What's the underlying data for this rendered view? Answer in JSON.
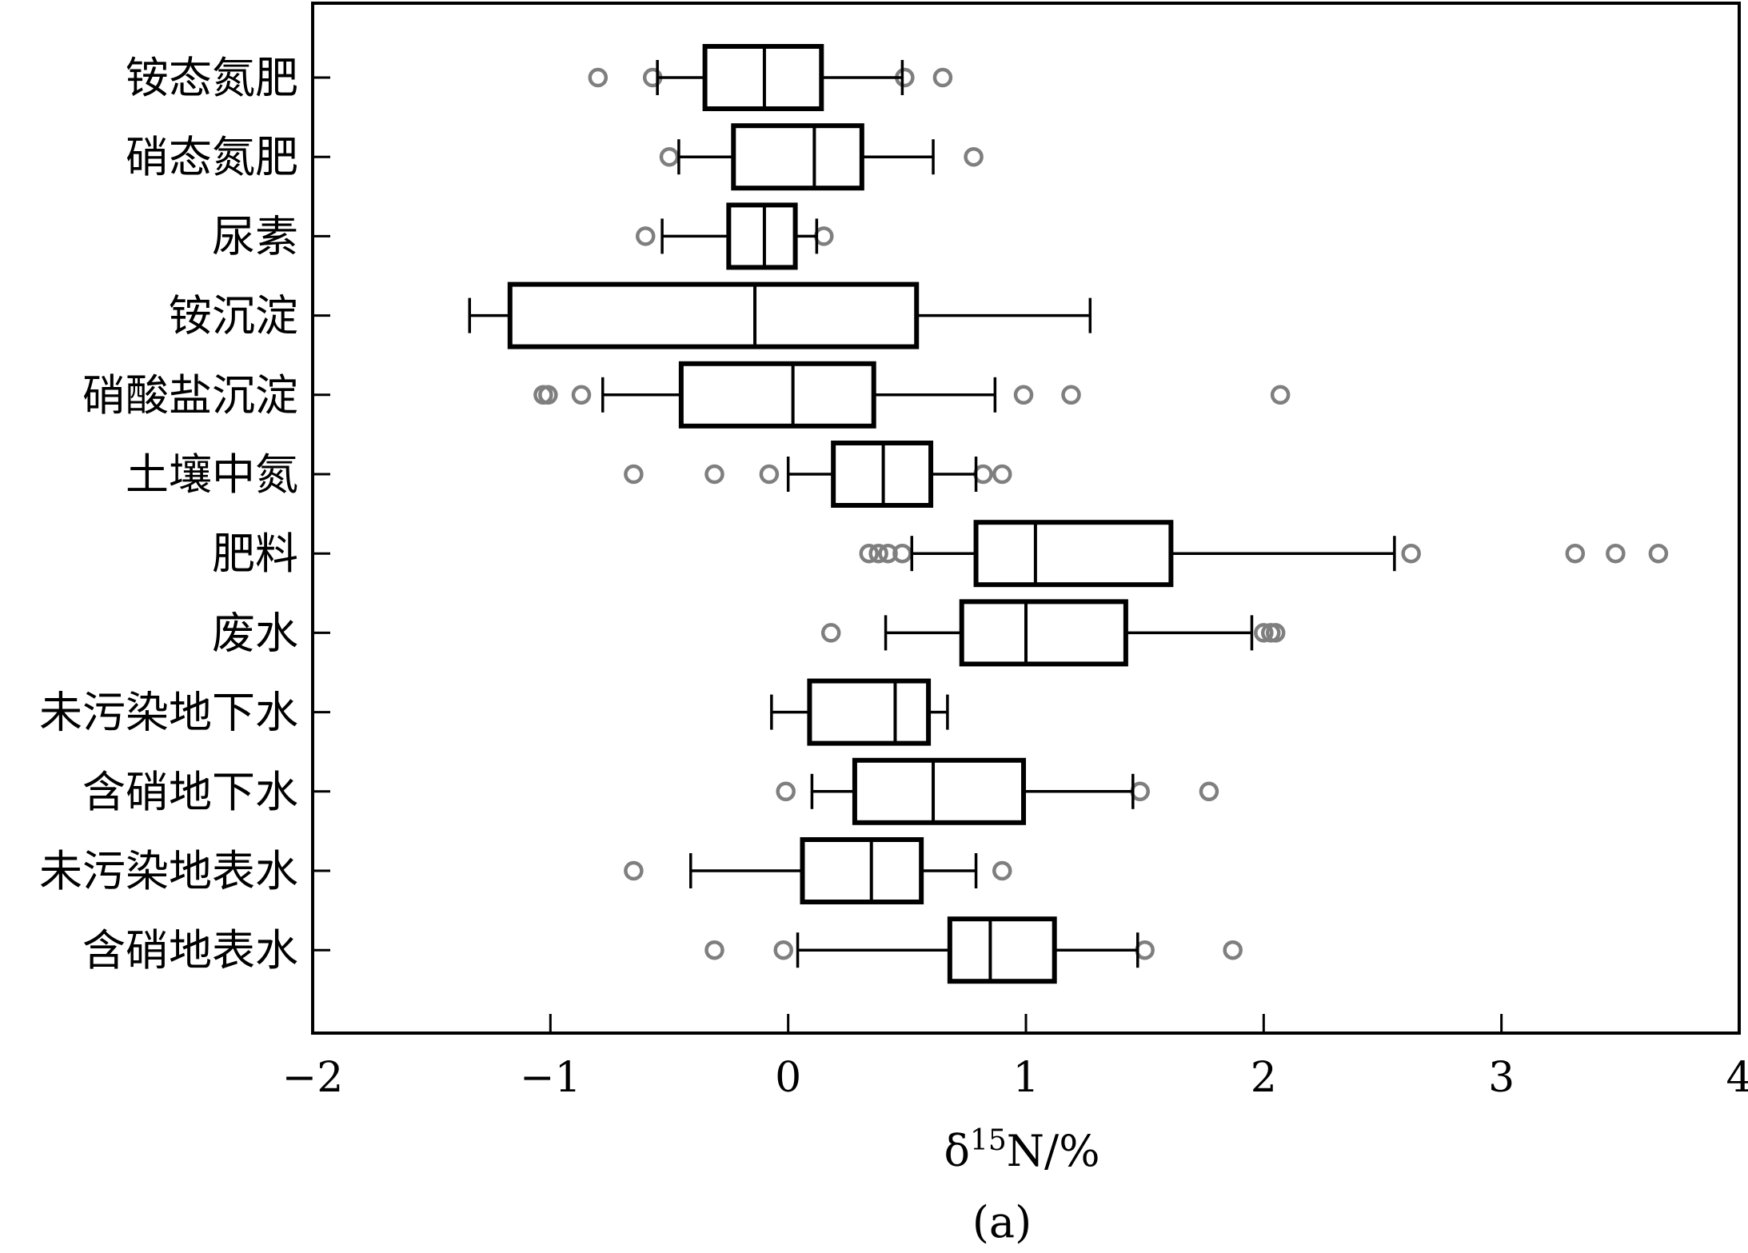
{
  "chart_data": {
    "type": "boxplot",
    "orientation": "horizontal",
    "title": "",
    "xlabel": "δ15N/%",
    "xlabel_parts": {
      "prefix": "δ",
      "superscript": "15",
      "suffix": "N/%"
    },
    "caption": "(a)",
    "xlim": [
      -2,
      4
    ],
    "xticks": [
      -2,
      -1,
      0,
      1,
      2,
      3,
      4
    ],
    "xtick_labels": [
      "−2",
      "−1",
      "0",
      "1",
      "2",
      "3",
      "4"
    ],
    "grid": false,
    "colors": {
      "box": "#000000",
      "outlier": "#7f7f7f"
    },
    "categories": [
      "铵态氮肥",
      "硝态氮肥",
      "尿素",
      "铵沉淀",
      "硝酸盐沉淀",
      "土壤中氮",
      "肥料",
      "废水",
      "未污染地下水",
      "含硝地下水",
      "未污染地表水",
      "含硝地表水"
    ],
    "series": [
      {
        "name": "铵态氮肥",
        "whisker_low": -0.55,
        "q1": -0.35,
        "median": -0.1,
        "q3": 0.14,
        "whisker_high": 0.48,
        "outliers": [
          -0.8,
          -0.57,
          0.49,
          0.65
        ]
      },
      {
        "name": "硝态氮肥",
        "whisker_low": -0.46,
        "q1": -0.23,
        "median": 0.11,
        "q3": 0.31,
        "whisker_high": 0.61,
        "outliers": [
          -0.5,
          0.78
        ]
      },
      {
        "name": "尿素",
        "whisker_low": -0.53,
        "q1": -0.25,
        "median": -0.1,
        "q3": 0.03,
        "whisker_high": 0.12,
        "outliers": [
          -0.6,
          0.15
        ]
      },
      {
        "name": "铵沉淀",
        "whisker_low": -1.34,
        "q1": -1.17,
        "median": -0.14,
        "q3": 0.54,
        "whisker_high": 1.27,
        "outliers": []
      },
      {
        "name": "硝酸盐沉淀",
        "whisker_low": -0.78,
        "q1": -0.45,
        "median": 0.02,
        "q3": 0.36,
        "whisker_high": 0.87,
        "outliers": [
          -1.03,
          -1.01,
          -0.87,
          0.99,
          1.19,
          2.07
        ]
      },
      {
        "name": "土壤中氮",
        "whisker_low": 0.0,
        "q1": 0.19,
        "median": 0.4,
        "q3": 0.6,
        "whisker_high": 0.79,
        "outliers": [
          -0.65,
          -0.31,
          -0.08,
          0.82,
          0.9
        ]
      },
      {
        "name": "肥料",
        "whisker_low": 0.52,
        "q1": 0.79,
        "median": 1.04,
        "q3": 1.61,
        "whisker_high": 2.55,
        "outliers": [
          0.34,
          0.38,
          0.42,
          0.48,
          2.62,
          3.31,
          3.48,
          3.66
        ]
      },
      {
        "name": "废水",
        "whisker_low": 0.41,
        "q1": 0.73,
        "median": 1.0,
        "q3": 1.42,
        "whisker_high": 1.95,
        "outliers": [
          0.18,
          2.0,
          2.03,
          2.05
        ]
      },
      {
        "name": "未污染地下水",
        "whisker_low": -0.07,
        "q1": 0.09,
        "median": 0.45,
        "q3": 0.59,
        "whisker_high": 0.67,
        "outliers": []
      },
      {
        "name": "含硝地下水",
        "whisker_low": 0.1,
        "q1": 0.28,
        "median": 0.61,
        "q3": 0.99,
        "whisker_high": 1.45,
        "outliers": [
          -0.01,
          1.48,
          1.77
        ]
      },
      {
        "name": "未污染地表水",
        "whisker_low": -0.41,
        "q1": 0.06,
        "median": 0.35,
        "q3": 0.56,
        "whisker_high": 0.79,
        "outliers": [
          -0.65,
          0.9
        ]
      },
      {
        "name": "含硝地表水",
        "whisker_low": 0.04,
        "q1": 0.68,
        "median": 0.85,
        "q3": 1.12,
        "whisker_high": 1.47,
        "outliers": [
          -0.31,
          -0.02,
          1.5,
          1.87
        ]
      }
    ]
  }
}
